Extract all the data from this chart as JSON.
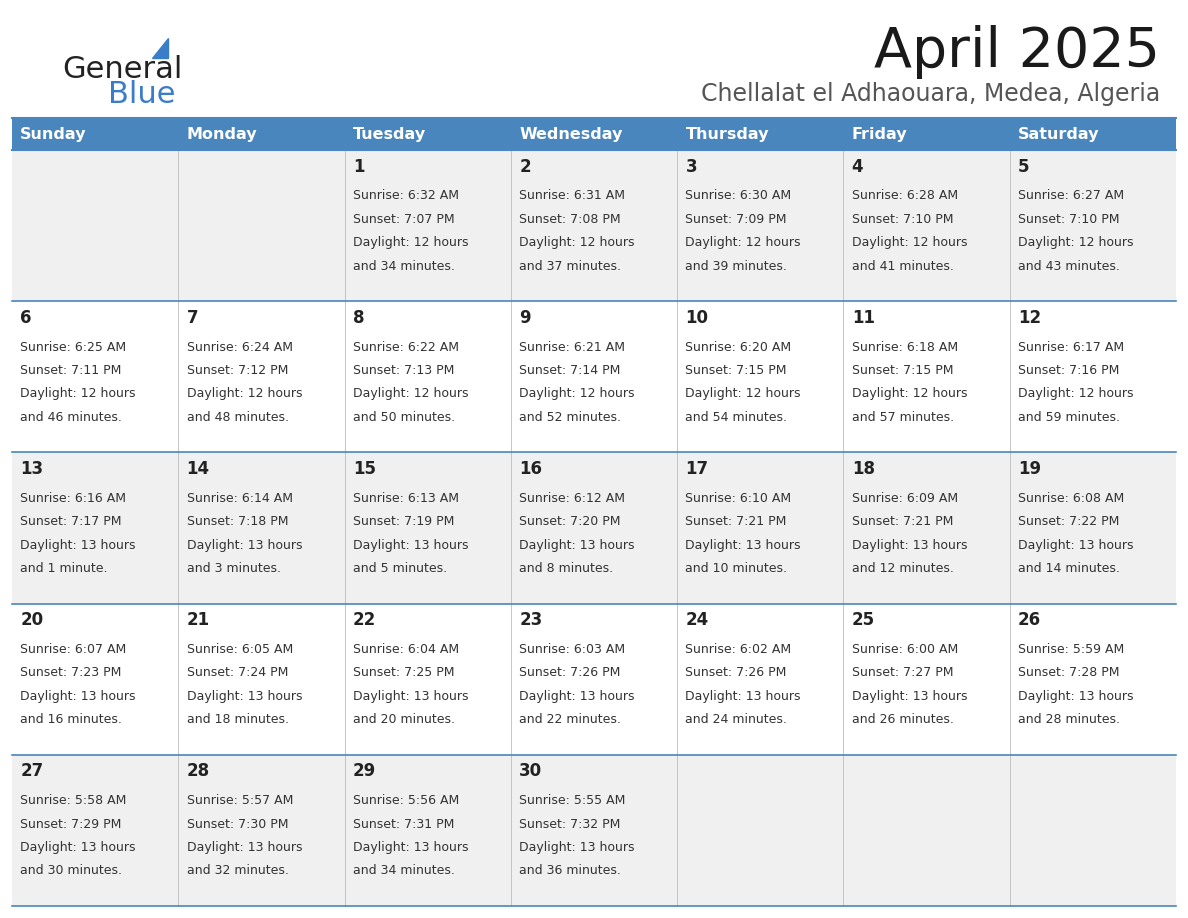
{
  "title": "April 2025",
  "subtitle": "Chellalat el Adhaouara, Medea, Algeria",
  "header_bg": "#4a86be",
  "header_text_color": "#ffffff",
  "row_bg_even": "#f0f0f0",
  "row_bg_odd": "#ffffff",
  "separator_color": "#4a86be",
  "cell_line_color": "#cccccc",
  "day_headers": [
    "Sunday",
    "Monday",
    "Tuesday",
    "Wednesday",
    "Thursday",
    "Friday",
    "Saturday"
  ],
  "days": [
    {
      "date": 1,
      "col": 2,
      "row": 0,
      "sunrise": "6:32 AM",
      "sunset": "7:07 PM",
      "daylight1": "Daylight: 12 hours",
      "daylight2": "and 34 minutes."
    },
    {
      "date": 2,
      "col": 3,
      "row": 0,
      "sunrise": "6:31 AM",
      "sunset": "7:08 PM",
      "daylight1": "Daylight: 12 hours",
      "daylight2": "and 37 minutes."
    },
    {
      "date": 3,
      "col": 4,
      "row": 0,
      "sunrise": "6:30 AM",
      "sunset": "7:09 PM",
      "daylight1": "Daylight: 12 hours",
      "daylight2": "and 39 minutes."
    },
    {
      "date": 4,
      "col": 5,
      "row": 0,
      "sunrise": "6:28 AM",
      "sunset": "7:10 PM",
      "daylight1": "Daylight: 12 hours",
      "daylight2": "and 41 minutes."
    },
    {
      "date": 5,
      "col": 6,
      "row": 0,
      "sunrise": "6:27 AM",
      "sunset": "7:10 PM",
      "daylight1": "Daylight: 12 hours",
      "daylight2": "and 43 minutes."
    },
    {
      "date": 6,
      "col": 0,
      "row": 1,
      "sunrise": "6:25 AM",
      "sunset": "7:11 PM",
      "daylight1": "Daylight: 12 hours",
      "daylight2": "and 46 minutes."
    },
    {
      "date": 7,
      "col": 1,
      "row": 1,
      "sunrise": "6:24 AM",
      "sunset": "7:12 PM",
      "daylight1": "Daylight: 12 hours",
      "daylight2": "and 48 minutes."
    },
    {
      "date": 8,
      "col": 2,
      "row": 1,
      "sunrise": "6:22 AM",
      "sunset": "7:13 PM",
      "daylight1": "Daylight: 12 hours",
      "daylight2": "and 50 minutes."
    },
    {
      "date": 9,
      "col": 3,
      "row": 1,
      "sunrise": "6:21 AM",
      "sunset": "7:14 PM",
      "daylight1": "Daylight: 12 hours",
      "daylight2": "and 52 minutes."
    },
    {
      "date": 10,
      "col": 4,
      "row": 1,
      "sunrise": "6:20 AM",
      "sunset": "7:15 PM",
      "daylight1": "Daylight: 12 hours",
      "daylight2": "and 54 minutes."
    },
    {
      "date": 11,
      "col": 5,
      "row": 1,
      "sunrise": "6:18 AM",
      "sunset": "7:15 PM",
      "daylight1": "Daylight: 12 hours",
      "daylight2": "and 57 minutes."
    },
    {
      "date": 12,
      "col": 6,
      "row": 1,
      "sunrise": "6:17 AM",
      "sunset": "7:16 PM",
      "daylight1": "Daylight: 12 hours",
      "daylight2": "and 59 minutes."
    },
    {
      "date": 13,
      "col": 0,
      "row": 2,
      "sunrise": "6:16 AM",
      "sunset": "7:17 PM",
      "daylight1": "Daylight: 13 hours",
      "daylight2": "and 1 minute."
    },
    {
      "date": 14,
      "col": 1,
      "row": 2,
      "sunrise": "6:14 AM",
      "sunset": "7:18 PM",
      "daylight1": "Daylight: 13 hours",
      "daylight2": "and 3 minutes."
    },
    {
      "date": 15,
      "col": 2,
      "row": 2,
      "sunrise": "6:13 AM",
      "sunset": "7:19 PM",
      "daylight1": "Daylight: 13 hours",
      "daylight2": "and 5 minutes."
    },
    {
      "date": 16,
      "col": 3,
      "row": 2,
      "sunrise": "6:12 AM",
      "sunset": "7:20 PM",
      "daylight1": "Daylight: 13 hours",
      "daylight2": "and 8 minutes."
    },
    {
      "date": 17,
      "col": 4,
      "row": 2,
      "sunrise": "6:10 AM",
      "sunset": "7:21 PM",
      "daylight1": "Daylight: 13 hours",
      "daylight2": "and 10 minutes."
    },
    {
      "date": 18,
      "col": 5,
      "row": 2,
      "sunrise": "6:09 AM",
      "sunset": "7:21 PM",
      "daylight1": "Daylight: 13 hours",
      "daylight2": "and 12 minutes."
    },
    {
      "date": 19,
      "col": 6,
      "row": 2,
      "sunrise": "6:08 AM",
      "sunset": "7:22 PM",
      "daylight1": "Daylight: 13 hours",
      "daylight2": "and 14 minutes."
    },
    {
      "date": 20,
      "col": 0,
      "row": 3,
      "sunrise": "6:07 AM",
      "sunset": "7:23 PM",
      "daylight1": "Daylight: 13 hours",
      "daylight2": "and 16 minutes."
    },
    {
      "date": 21,
      "col": 1,
      "row": 3,
      "sunrise": "6:05 AM",
      "sunset": "7:24 PM",
      "daylight1": "Daylight: 13 hours",
      "daylight2": "and 18 minutes."
    },
    {
      "date": 22,
      "col": 2,
      "row": 3,
      "sunrise": "6:04 AM",
      "sunset": "7:25 PM",
      "daylight1": "Daylight: 13 hours",
      "daylight2": "and 20 minutes."
    },
    {
      "date": 23,
      "col": 3,
      "row": 3,
      "sunrise": "6:03 AM",
      "sunset": "7:26 PM",
      "daylight1": "Daylight: 13 hours",
      "daylight2": "and 22 minutes."
    },
    {
      "date": 24,
      "col": 4,
      "row": 3,
      "sunrise": "6:02 AM",
      "sunset": "7:26 PM",
      "daylight1": "Daylight: 13 hours",
      "daylight2": "and 24 minutes."
    },
    {
      "date": 25,
      "col": 5,
      "row": 3,
      "sunrise": "6:00 AM",
      "sunset": "7:27 PM",
      "daylight1": "Daylight: 13 hours",
      "daylight2": "and 26 minutes."
    },
    {
      "date": 26,
      "col": 6,
      "row": 3,
      "sunrise": "5:59 AM",
      "sunset": "7:28 PM",
      "daylight1": "Daylight: 13 hours",
      "daylight2": "and 28 minutes."
    },
    {
      "date": 27,
      "col": 0,
      "row": 4,
      "sunrise": "5:58 AM",
      "sunset": "7:29 PM",
      "daylight1": "Daylight: 13 hours",
      "daylight2": "and 30 minutes."
    },
    {
      "date": 28,
      "col": 1,
      "row": 4,
      "sunrise": "5:57 AM",
      "sunset": "7:30 PM",
      "daylight1": "Daylight: 13 hours",
      "daylight2": "and 32 minutes."
    },
    {
      "date": 29,
      "col": 2,
      "row": 4,
      "sunrise": "5:56 AM",
      "sunset": "7:31 PM",
      "daylight1": "Daylight: 13 hours",
      "daylight2": "and 34 minutes."
    },
    {
      "date": 30,
      "col": 3,
      "row": 4,
      "sunrise": "5:55 AM",
      "sunset": "7:32 PM",
      "daylight1": "Daylight: 13 hours",
      "daylight2": "and 36 minutes."
    }
  ],
  "title_fontsize": 40,
  "subtitle_fontsize": 17,
  "header_fontsize": 11.5,
  "date_fontsize": 12,
  "info_fontsize": 9
}
